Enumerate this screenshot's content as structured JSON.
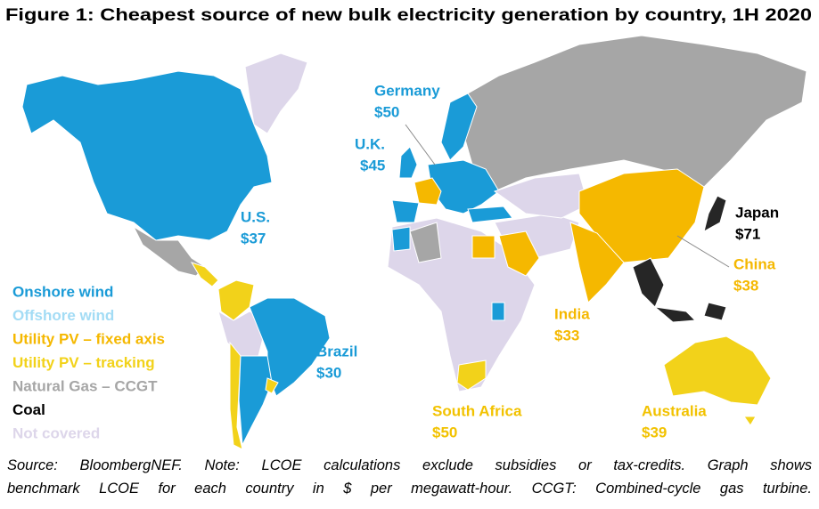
{
  "title": "Figure 1: Cheapest source of new bulk electricity generation by country, 1H 2020",
  "legend": [
    {
      "label": "Onshore wind",
      "color": "#1a9bd7"
    },
    {
      "label": "Offshore wind",
      "color": "#a3dcf5"
    },
    {
      "label": "Utility PV – fixed axis",
      "color": "#f5b800"
    },
    {
      "label": "Utility PV – tracking",
      "color": "#f2d21a"
    },
    {
      "label": "Natural Gas – CCGT",
      "color": "#a6a6a6"
    },
    {
      "label": "Coal",
      "color": "#000000"
    },
    {
      "label": "Not covered",
      "color": "#ddd6ea"
    }
  ],
  "countries": [
    {
      "name": "Germany",
      "value": "$50",
      "color": "#1a9bd7"
    },
    {
      "name": "U.K.",
      "value": "$45",
      "color": "#1a9bd7"
    },
    {
      "name": "U.S.",
      "value": "$37",
      "color": "#1a9bd7"
    },
    {
      "name": "Brazil",
      "value": "$30",
      "color": "#1a9bd7"
    },
    {
      "name": "Japan",
      "value": "$71",
      "color": "#000000"
    },
    {
      "name": "China",
      "value": "$38",
      "color": "#f5b800"
    },
    {
      "name": "India",
      "value": "$33",
      "color": "#f5b800"
    },
    {
      "name": "South Africa",
      "value": "$50",
      "color": "#f2c200"
    },
    {
      "name": "Australia",
      "value": "$39",
      "color": "#f2c200"
    }
  ],
  "source_lines": [
    "Source: BloombergNEF. Note: LCOE calculations exclude subsidies or tax-credits. Graph shows",
    "benchmark LCOE for each country in $ per megawatt-hour. CCGT: Combined-cycle gas turbine."
  ]
}
